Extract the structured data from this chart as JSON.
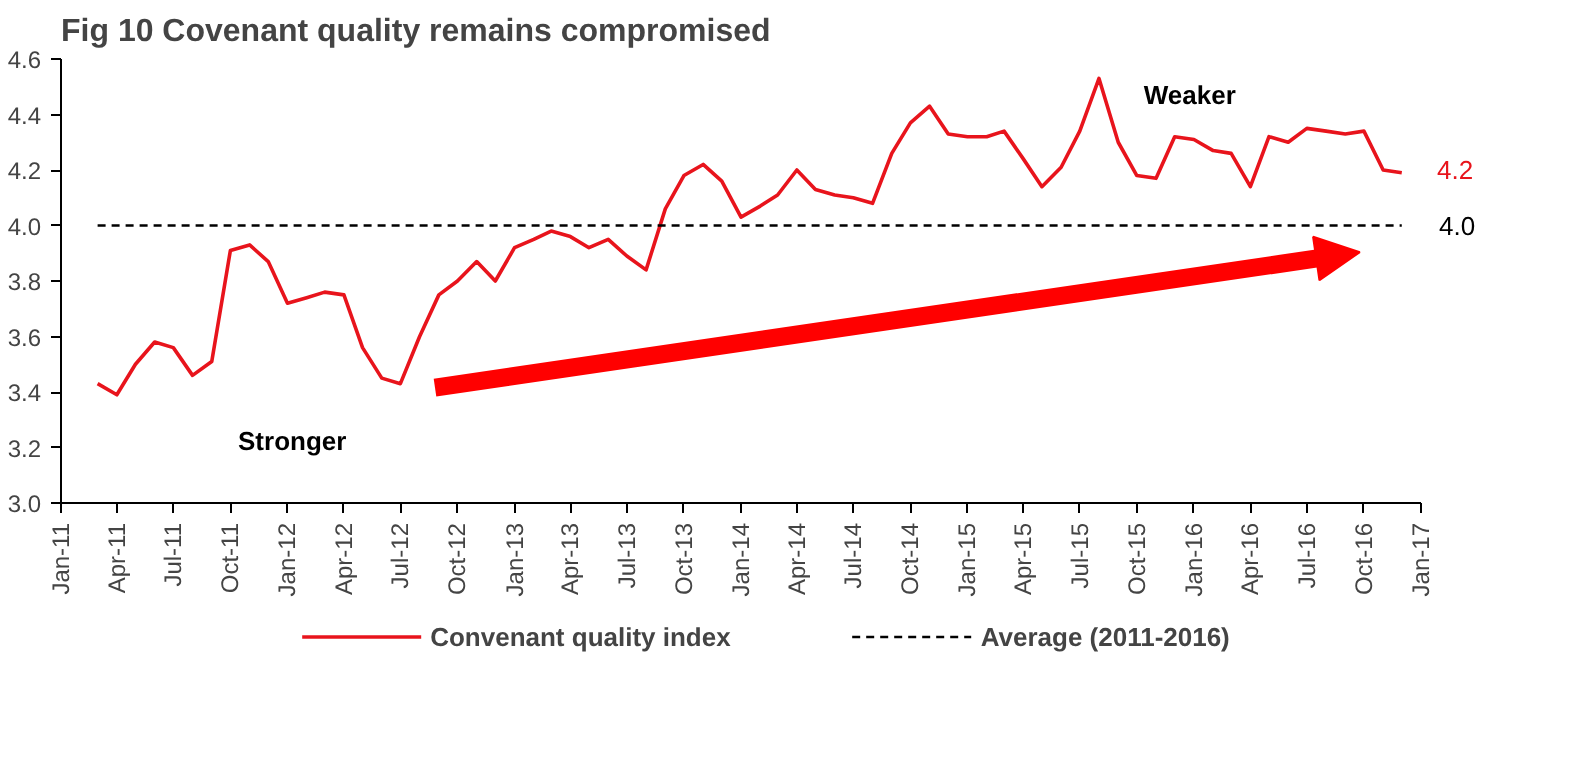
{
  "chart_data": {
    "type": "line",
    "title": "Fig 10 Covenant quality remains compromised",
    "x": [
      "2011-03",
      "2011-04",
      "2011-05",
      "2011-06",
      "2011-07",
      "2011-08",
      "2011-09",
      "2011-10",
      "2011-11",
      "2011-12",
      "2012-01",
      "2012-02",
      "2012-03",
      "2012-04",
      "2012-05",
      "2012-06",
      "2012-07",
      "2012-08",
      "2012-09",
      "2012-10",
      "2012-11",
      "2012-12",
      "2013-01",
      "2013-02",
      "2013-03",
      "2013-04",
      "2013-05",
      "2013-06",
      "2013-07",
      "2013-08",
      "2013-09",
      "2013-10",
      "2013-11",
      "2013-12",
      "2014-01",
      "2014-02",
      "2014-03",
      "2014-04",
      "2014-05",
      "2014-06",
      "2014-07",
      "2014-08",
      "2014-09",
      "2014-10",
      "2014-11",
      "2014-12",
      "2015-01",
      "2015-02",
      "2015-03",
      "2015-04",
      "2015-05",
      "2015-06",
      "2015-07",
      "2015-08",
      "2015-09",
      "2015-10",
      "2015-11",
      "2015-12",
      "2016-01",
      "2016-02",
      "2016-03",
      "2016-04",
      "2016-05",
      "2016-06",
      "2016-07",
      "2016-08",
      "2016-09",
      "2016-10",
      "2016-11",
      "2016-12"
    ],
    "series": [
      {
        "name": "Convenant quality index",
        "color": "#e8141c",
        "line_style": "solid",
        "values": [
          3.43,
          3.39,
          3.5,
          3.58,
          3.56,
          3.46,
          3.51,
          3.91,
          3.93,
          3.87,
          3.72,
          3.74,
          3.76,
          3.75,
          3.56,
          3.45,
          3.43,
          3.6,
          3.75,
          3.8,
          3.87,
          3.8,
          3.92,
          3.95,
          3.98,
          3.96,
          3.92,
          3.95,
          3.89,
          3.84,
          4.06,
          4.18,
          4.22,
          4.16,
          4.03,
          4.07,
          4.11,
          4.2,
          4.13,
          4.11,
          4.1,
          4.08,
          4.26,
          4.37,
          4.43,
          4.33,
          4.32,
          4.32,
          4.34,
          4.24,
          4.14,
          4.21,
          4.34,
          4.53,
          4.3,
          4.18,
          4.17,
          4.32,
          4.31,
          4.27,
          4.26,
          4.14,
          4.32,
          4.3,
          4.35,
          4.34,
          4.33,
          4.34,
          4.2,
          4.19
        ]
      },
      {
        "name": "Average (2011-2016)",
        "color": "#000000",
        "line_style": "dashed",
        "values": [
          4.0,
          4.0,
          4.0,
          4.0,
          4.0,
          4.0,
          4.0,
          4.0,
          4.0,
          4.0,
          4.0,
          4.0,
          4.0,
          4.0,
          4.0,
          4.0,
          4.0,
          4.0,
          4.0,
          4.0,
          4.0,
          4.0,
          4.0,
          4.0,
          4.0,
          4.0,
          4.0,
          4.0,
          4.0,
          4.0,
          4.0,
          4.0,
          4.0,
          4.0,
          4.0,
          4.0,
          4.0,
          4.0,
          4.0,
          4.0,
          4.0,
          4.0,
          4.0,
          4.0,
          4.0,
          4.0,
          4.0,
          4.0,
          4.0,
          4.0,
          4.0,
          4.0,
          4.0,
          4.0,
          4.0,
          4.0,
          4.0,
          4.0,
          4.0,
          4.0,
          4.0,
          4.0,
          4.0,
          4.0,
          4.0,
          4.0,
          4.0,
          4.0,
          4.0,
          4.0
        ]
      }
    ],
    "annotations": [
      "Stronger",
      "Weaker",
      {
        "text": "4.2",
        "x": "2016-12",
        "y": 4.2
      },
      {
        "text": "4.0",
        "x": "2016-12",
        "y": 4.0
      }
    ],
    "xlim": [
      "2011-01",
      "2017-01"
    ],
    "xticks": [
      {
        "value": "2011-01",
        "label": "Jan-11"
      },
      {
        "value": "2011-04",
        "label": "Apr-11"
      },
      {
        "value": "2011-07",
        "label": "Jul-11"
      },
      {
        "value": "2011-10",
        "label": "Oct-11"
      },
      {
        "value": "2012-01",
        "label": "Jan-12"
      },
      {
        "value": "2012-04",
        "label": "Apr-12"
      },
      {
        "value": "2012-07",
        "label": "Jul-12"
      },
      {
        "value": "2012-10",
        "label": "Oct-12"
      },
      {
        "value": "2013-01",
        "label": "Jan-13"
      },
      {
        "value": "2013-04",
        "label": "Apr-13"
      },
      {
        "value": "2013-07",
        "label": "Jul-13"
      },
      {
        "value": "2013-10",
        "label": "Oct-13"
      },
      {
        "value": "2014-01",
        "label": "Jan-14"
      },
      {
        "value": "2014-04",
        "label": "Apr-14"
      },
      {
        "value": "2014-07",
        "label": "Jul-14"
      },
      {
        "value": "2014-10",
        "label": "Oct-14"
      },
      {
        "value": "2015-01",
        "label": "Jan-15"
      },
      {
        "value": "2015-04",
        "label": "Apr-15"
      },
      {
        "value": "2015-07",
        "label": "Jul-15"
      },
      {
        "value": "2015-10",
        "label": "Oct-15"
      },
      {
        "value": "2016-01",
        "label": "Jan-16"
      },
      {
        "value": "2016-04",
        "label": "Apr-16"
      },
      {
        "value": "2016-07",
        "label": "Jul-16"
      },
      {
        "value": "2016-10",
        "label": "Oct-16"
      },
      {
        "value": "2017-01",
        "label": "Jan-17"
      }
    ],
    "ylim": [
      3.0,
      4.6
    ],
    "yticks": [
      {
        "value": 3.0,
        "label": "3.0"
      },
      {
        "value": 3.2,
        "label": "3.2"
      },
      {
        "value": 3.4,
        "label": "3.4"
      },
      {
        "value": 3.6,
        "label": "3.6"
      },
      {
        "value": 3.8,
        "label": "3.8"
      },
      {
        "value": 4.0,
        "label": "4.0"
      },
      {
        "value": 4.2,
        "label": "4.2"
      },
      {
        "value": 4.4,
        "label": "4.4"
      },
      {
        "value": 4.6,
        "label": "4.6"
      }
    ],
    "grid": false,
    "legend": "bottom",
    "marker": "none"
  }
}
